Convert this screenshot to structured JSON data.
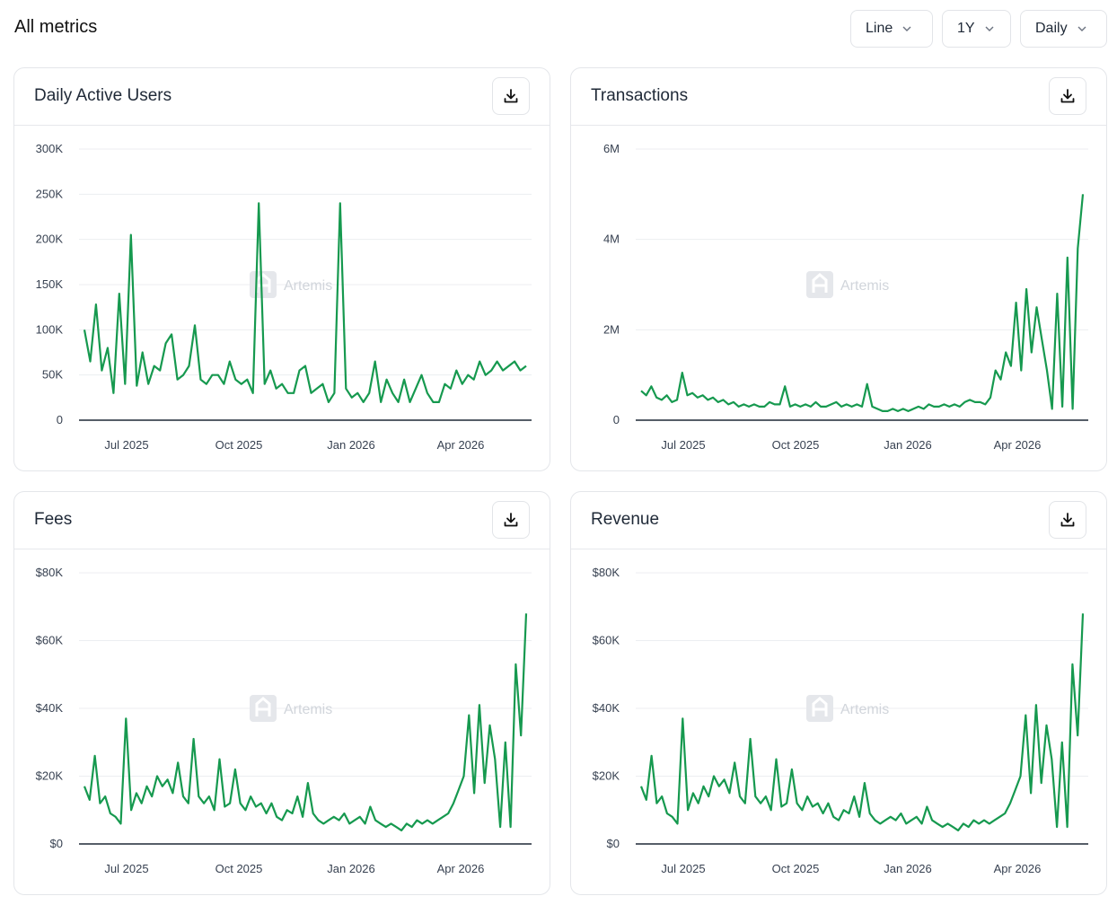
{
  "header": {
    "title": "All metrics",
    "controls": [
      {
        "label": "Line",
        "icon": "chevron-down-icon"
      },
      {
        "label": "1Y",
        "icon": "chevron-down-icon"
      },
      {
        "label": "Daily",
        "icon": "chevron-down-icon"
      }
    ]
  },
  "theme": {
    "line_color": "#16994f",
    "grid_color": "#eceef1",
    "axis_color": "#1f2937"
  },
  "watermark": "Artemis",
  "charts": [
    {
      "title": "Daily Active Users",
      "download_icon": "download-icon",
      "chart_data": {
        "type": "line",
        "title": "Daily Active Users",
        "x": [
          "2025-06",
          "2025-06",
          "2025-06",
          "2025-06",
          "2025-06",
          "2025-06",
          "2025-07",
          "2025-07",
          "2025-07",
          "2025-07",
          "2025-07",
          "2025-07",
          "2025-07",
          "2025-07",
          "2025-07",
          "2025-08",
          "2025-08",
          "2025-08",
          "2025-08",
          "2025-08",
          "2025-08",
          "2025-08",
          "2025-08",
          "2025-09",
          "2025-09",
          "2025-09",
          "2025-09",
          "2025-09",
          "2025-09",
          "2025-09",
          "2025-10",
          "2025-10",
          "2025-10",
          "2025-10",
          "2025-10",
          "2025-10",
          "2025-10",
          "2025-11",
          "2025-11",
          "2025-11",
          "2025-11",
          "2025-11",
          "2025-11",
          "2025-11",
          "2025-12",
          "2025-12",
          "2025-12",
          "2025-12",
          "2025-12",
          "2025-12",
          "2026-01",
          "2026-01",
          "2026-01",
          "2026-01",
          "2026-01",
          "2026-01",
          "2026-02",
          "2026-02",
          "2026-02",
          "2026-02",
          "2026-02",
          "2026-03",
          "2026-03",
          "2026-03",
          "2026-03",
          "2026-03",
          "2026-04",
          "2026-04",
          "2026-04",
          "2026-04",
          "2026-04",
          "2026-05",
          "2026-05",
          "2026-05",
          "2026-05",
          "2026-05",
          "2026-05"
        ],
        "values": [
          100,
          65,
          128,
          55,
          80,
          30,
          140,
          40,
          205,
          38,
          75,
          40,
          60,
          55,
          85,
          95,
          45,
          50,
          60,
          105,
          45,
          40,
          50,
          50,
          40,
          65,
          45,
          40,
          45,
          30,
          240,
          40,
          55,
          35,
          40,
          30,
          30,
          55,
          60,
          30,
          35,
          40,
          20,
          30,
          240,
          35,
          25,
          30,
          20,
          30,
          65,
          20,
          45,
          30,
          20,
          45,
          20,
          35,
          50,
          30,
          20,
          20,
          40,
          35,
          55,
          40,
          50,
          45,
          65,
          50,
          55,
          65,
          55,
          60,
          65,
          55,
          60
        ],
        "xticks": [
          "Jul 2025",
          "Oct 2025",
          "Jan 2026",
          "Apr 2026"
        ],
        "yticks": [
          "0",
          "50K",
          "100K",
          "150K",
          "200K",
          "250K",
          "300K"
        ],
        "ylim": [
          0,
          300000
        ],
        "units": "K",
        "grid": true
      }
    },
    {
      "title": "Transactions",
      "download_icon": "download-icon",
      "chart_data": {
        "type": "line",
        "title": "Transactions",
        "values": [
          0.65,
          0.55,
          0.75,
          0.5,
          0.45,
          0.55,
          0.4,
          0.45,
          1.05,
          0.55,
          0.6,
          0.5,
          0.55,
          0.45,
          0.5,
          0.4,
          0.45,
          0.35,
          0.4,
          0.3,
          0.35,
          0.3,
          0.35,
          0.3,
          0.3,
          0.4,
          0.35,
          0.35,
          0.75,
          0.3,
          0.35,
          0.3,
          0.35,
          0.3,
          0.4,
          0.3,
          0.3,
          0.35,
          0.4,
          0.3,
          0.35,
          0.3,
          0.35,
          0.3,
          0.8,
          0.3,
          0.25,
          0.2,
          0.2,
          0.25,
          0.2,
          0.25,
          0.2,
          0.25,
          0.3,
          0.25,
          0.35,
          0.3,
          0.3,
          0.35,
          0.3,
          0.35,
          0.3,
          0.4,
          0.45,
          0.4,
          0.4,
          0.35,
          0.5,
          1.1,
          0.9,
          1.5,
          1.2,
          2.6,
          1.1,
          2.9,
          1.5,
          2.5,
          1.8,
          1.1,
          0.25,
          2.8,
          0.3,
          3.6,
          0.25,
          3.8,
          5.0
        ],
        "xticks": [
          "Jul 2025",
          "Oct 2025",
          "Jan 2026",
          "Apr 2026"
        ],
        "yticks": [
          "0",
          "2M",
          "4M",
          "6M"
        ],
        "ylim": [
          0,
          6
        ],
        "units": "M",
        "grid": true
      }
    },
    {
      "title": "Fees",
      "download_icon": "download-icon",
      "chart_data": {
        "type": "line",
        "title": "Fees",
        "values": [
          17,
          13,
          26,
          12,
          14,
          9,
          8,
          6,
          37,
          10,
          15,
          12,
          17,
          14,
          20,
          17,
          19,
          15,
          24,
          14,
          12,
          31,
          14,
          12,
          14,
          10,
          25,
          11,
          12,
          22,
          12,
          10,
          14,
          11,
          12,
          9,
          12,
          8,
          7,
          10,
          9,
          14,
          8,
          18,
          9,
          7,
          6,
          7,
          8,
          7,
          9,
          6,
          7,
          8,
          6,
          11,
          7,
          6,
          5,
          6,
          5,
          4,
          6,
          5,
          7,
          6,
          7,
          6,
          7,
          8,
          9,
          12,
          16,
          20,
          38,
          15,
          41,
          18,
          35,
          25,
          5,
          30,
          5,
          53,
          32,
          68
        ],
        "xticks": [
          "Jul 2025",
          "Oct 2025",
          "Jan 2026",
          "Apr 2026"
        ],
        "yticks": [
          "$0",
          "$20K",
          "$40K",
          "$60K",
          "$80K"
        ],
        "ylim": [
          0,
          80
        ],
        "units": "$K",
        "grid": true
      }
    },
    {
      "title": "Revenue",
      "download_icon": "download-icon",
      "chart_data": {
        "type": "line",
        "title": "Revenue",
        "values": [
          17,
          13,
          26,
          12,
          14,
          9,
          8,
          6,
          37,
          10,
          15,
          12,
          17,
          14,
          20,
          17,
          19,
          15,
          24,
          14,
          12,
          31,
          14,
          12,
          14,
          10,
          25,
          11,
          12,
          22,
          12,
          10,
          14,
          11,
          12,
          9,
          12,
          8,
          7,
          10,
          9,
          14,
          8,
          18,
          9,
          7,
          6,
          7,
          8,
          7,
          9,
          6,
          7,
          8,
          6,
          11,
          7,
          6,
          5,
          6,
          5,
          4,
          6,
          5,
          7,
          6,
          7,
          6,
          7,
          8,
          9,
          12,
          16,
          20,
          38,
          15,
          41,
          18,
          35,
          25,
          5,
          30,
          5,
          53,
          32,
          68
        ],
        "xticks": [
          "Jul 2025",
          "Oct 2025",
          "Jan 2026",
          "Apr 2026"
        ],
        "yticks": [
          "$0",
          "$20K",
          "$40K",
          "$60K",
          "$80K"
        ],
        "ylim": [
          0,
          80
        ],
        "units": "$K",
        "grid": true
      }
    }
  ]
}
